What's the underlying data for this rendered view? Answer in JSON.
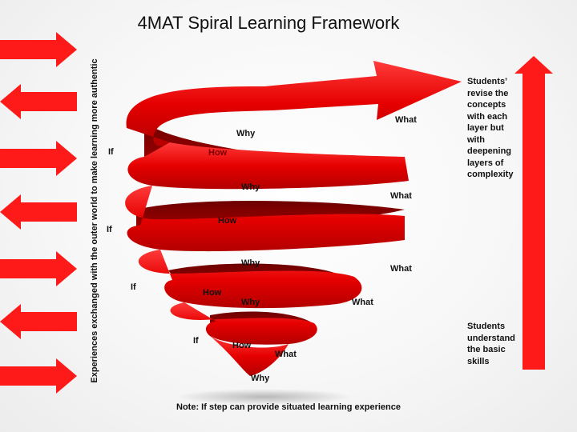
{
  "title": "4MAT Spiral Learning Framework",
  "vertical_label": "Experiences  exchanged with the outer world  to make learning more authentic",
  "side_arrows": [
    "right",
    "left",
    "right",
    "left",
    "right",
    "left",
    "right"
  ],
  "spiral_labels": [
    {
      "text": "Why"
    },
    {
      "text": "What"
    },
    {
      "text": "If"
    },
    {
      "text": "How"
    },
    {
      "text": "Why"
    },
    {
      "text": "What"
    },
    {
      "text": "If"
    },
    {
      "text": "How"
    },
    {
      "text": "Why"
    },
    {
      "text": "What"
    },
    {
      "text": "If"
    },
    {
      "text": "How"
    },
    {
      "text": "Why"
    },
    {
      "text": "What"
    },
    {
      "text": "If"
    },
    {
      "text": "How"
    },
    {
      "text": "What"
    },
    {
      "text": "Why"
    }
  ],
  "top_right_note": "Students’ revise the concepts with each layer but with deepening layers of complexity",
  "bottom_right_note": "Students understand the basic skills",
  "footer_note": "Note: If step can provide situated learning experience",
  "colors": {
    "accent_red": "#ff0000",
    "spiral_red": "#e00000",
    "spiral_dark": "#8a0000"
  }
}
